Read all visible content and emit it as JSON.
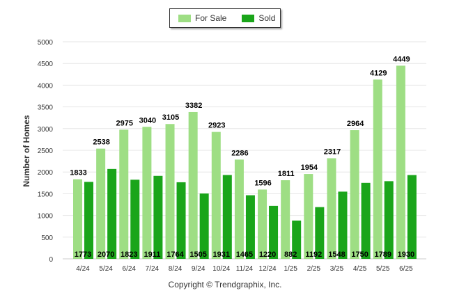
{
  "chart_data": {
    "type": "bar",
    "title": "",
    "xlabel": "",
    "ylabel": "Number of Homes",
    "ylim": [
      0,
      5000
    ],
    "yticks": [
      0,
      500,
      1000,
      1500,
      2000,
      2500,
      3000,
      3500,
      4000,
      4500,
      5000
    ],
    "grid": true,
    "legend_position": "top-center",
    "categories": [
      "4/24",
      "5/24",
      "6/24",
      "7/24",
      "8/24",
      "9/24",
      "10/24",
      "11/24",
      "12/24",
      "1/25",
      "2/25",
      "3/25",
      "4/25",
      "5/25",
      "6/25"
    ],
    "series": [
      {
        "name": "For Sale",
        "color": "#9ede84",
        "values": [
          1833,
          2538,
          2975,
          3040,
          3105,
          3382,
          2923,
          2286,
          1596,
          1811,
          1954,
          2317,
          2964,
          4129,
          4449
        ]
      },
      {
        "name": "Sold",
        "color": "#1aa51a",
        "values": [
          1773,
          2070,
          1823,
          1911,
          1764,
          1505,
          1931,
          1465,
          1220,
          882,
          1192,
          1548,
          1750,
          1789,
          1930
        ]
      }
    ]
  },
  "footer": {
    "copyright": "Copyright © Trendgraphix, Inc."
  }
}
